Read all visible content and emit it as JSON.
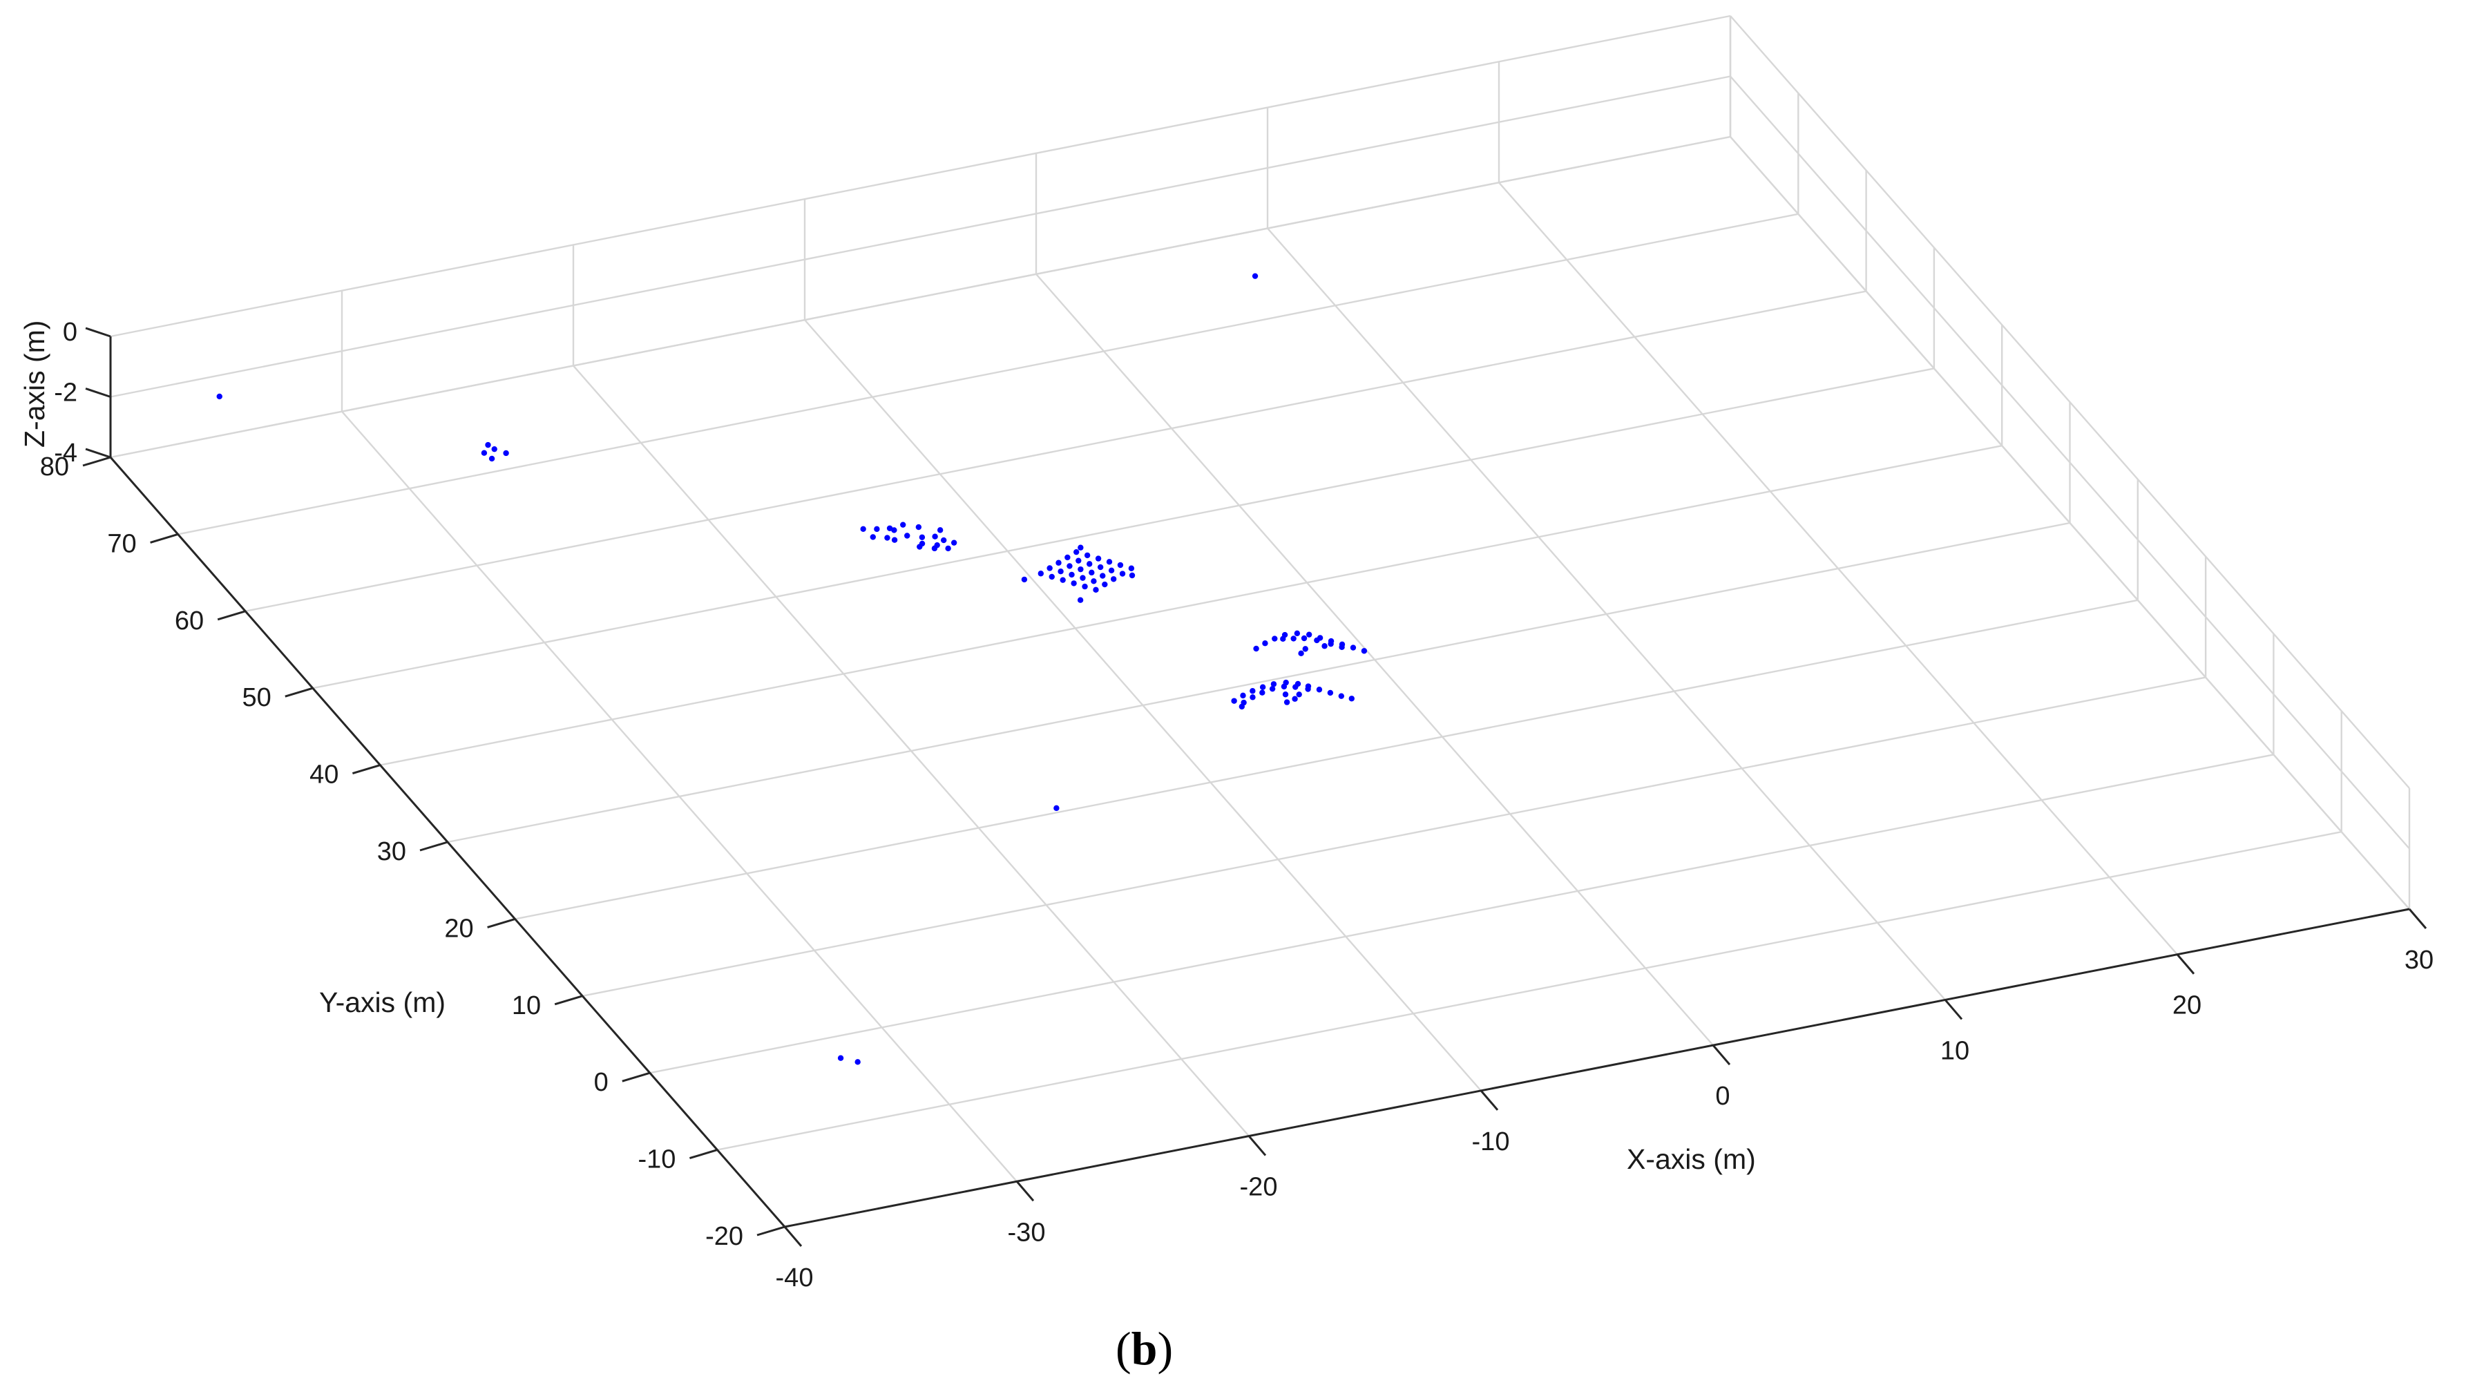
{
  "chart_data": {
    "type": "scatter",
    "dimensions": 3,
    "panel_label": {
      "open": "(",
      "letter": "b",
      "close": ")"
    },
    "xlabel": "X-axis (m)",
    "ylabel": "Y-axis (m)",
    "zlabel": "Z-axis (m)",
    "xlim": [
      -40,
      30
    ],
    "ylim": [
      -20,
      80
    ],
    "zlim": [
      -4,
      0
    ],
    "x_ticks": [
      "-40",
      "-30",
      "-20",
      "-10",
      "0",
      "10",
      "20",
      "30"
    ],
    "y_ticks": [
      "-20",
      "-10",
      "0",
      "10",
      "20",
      "30",
      "40",
      "50",
      "60",
      "70",
      "80"
    ],
    "z_ticks": [
      "-4",
      "-2",
      "0"
    ],
    "grid": true,
    "marker_color": "#0000ff",
    "axis_color": "#262626",
    "grid_color": "#d7d7d7",
    "points": [
      [
        -35,
        81,
        -3
      ],
      [
        -26,
        71.5,
        -4
      ],
      [
        -25.3,
        71.8,
        -4
      ],
      [
        -25.6,
        72.5,
        -4
      ],
      [
        -26.1,
        72.3,
        -4
      ],
      [
        -25.7,
        73.1,
        -4
      ],
      [
        -14.5,
        54.5,
        -4
      ],
      [
        -14,
        54.1,
        -4
      ],
      [
        -13.5,
        54.8,
        -4
      ],
      [
        -13,
        55.2,
        -4
      ],
      [
        -12.5,
        54.6,
        -4
      ],
      [
        -13.2,
        53.9,
        -4
      ],
      [
        -12.7,
        53.4,
        -4
      ],
      [
        -13.8,
        53.7,
        -4
      ],
      [
        -12.2,
        53.2,
        -4
      ],
      [
        -14.1,
        55.3,
        -4
      ],
      [
        -13.6,
        55.1,
        -4
      ],
      [
        -12.9,
        52.7,
        -4
      ],
      [
        -12.4,
        52.2,
        -4
      ],
      [
        -12,
        52.6,
        -4
      ],
      [
        -11.8,
        53.8,
        -4
      ],
      [
        -12.6,
        51.9,
        -4
      ],
      [
        -13.1,
        52.4,
        -4
      ],
      [
        -12.1,
        51.6,
        -4
      ],
      [
        -11.7,
        52.1,
        -4
      ],
      [
        -14.6,
        55.6,
        -4
      ],
      [
        -9.5,
        46.8,
        -4
      ],
      [
        -9,
        47.2,
        -4
      ],
      [
        -8.5,
        47.6,
        -4
      ],
      [
        -8,
        48,
        -4
      ],
      [
        -7.5,
        48.4,
        -4
      ],
      [
        -9.2,
        46.2,
        -4
      ],
      [
        -8.7,
        46.6,
        -4
      ],
      [
        -8.2,
        47,
        -4
      ],
      [
        -7.7,
        47.4,
        -4
      ],
      [
        -7.2,
        47.8,
        -4
      ],
      [
        -8.9,
        45.6,
        -4
      ],
      [
        -8.4,
        46,
        -4
      ],
      [
        -7.9,
        46.4,
        -4
      ],
      [
        -7.4,
        46.8,
        -4
      ],
      [
        -6.9,
        47.2,
        -4
      ],
      [
        -8.6,
        45,
        -4
      ],
      [
        -8.1,
        45.4,
        -4
      ],
      [
        -7.6,
        45.8,
        -4
      ],
      [
        -7.1,
        46.2,
        -4
      ],
      [
        -6.6,
        46.6,
        -4
      ],
      [
        -8.3,
        44.4,
        -4
      ],
      [
        -7.8,
        44.8,
        -4
      ],
      [
        -7.3,
        45.2,
        -4
      ],
      [
        -6.8,
        45.6,
        -4
      ],
      [
        -6.3,
        46,
        -4
      ],
      [
        -8,
        43.8,
        -4
      ],
      [
        -7.5,
        44.2,
        -4
      ],
      [
        -7,
        44.6,
        -4
      ],
      [
        -6.5,
        45,
        -4
      ],
      [
        -6,
        45.4,
        -4
      ],
      [
        -10.3,
        46.5,
        -4
      ],
      [
        -8.9,
        43,
        -4
      ],
      [
        -7.2,
        48.8,
        -4
      ],
      [
        -6.2,
        44.6,
        -4
      ],
      [
        -4,
        33.8,
        -4
      ],
      [
        -3.5,
        34.2,
        -4
      ],
      [
        -3,
        34.5,
        -4
      ],
      [
        -2.5,
        34.7,
        -4
      ],
      [
        -2,
        34.6,
        -4
      ],
      [
        -1.6,
        34.2,
        -4
      ],
      [
        -1.3,
        33.6,
        -4
      ],
      [
        -1,
        33,
        -4
      ],
      [
        -0.7,
        32.4,
        -4
      ],
      [
        -0.4,
        31.8,
        -4
      ],
      [
        -0.1,
        31.2,
        -4
      ],
      [
        -2.3,
        34.1,
        -4
      ],
      [
        -1.9,
        33.9,
        -4
      ],
      [
        -1.5,
        33.4,
        -4
      ],
      [
        -1.1,
        32.7,
        -4
      ],
      [
        -0.8,
        32.1,
        -4
      ],
      [
        -2.7,
        34.3,
        -4
      ],
      [
        -1.4,
        32.6,
        -4
      ],
      [
        -2.2,
        32.7,
        -4
      ],
      [
        -2.5,
        32.3,
        -4
      ],
      [
        -6.5,
        28.5,
        -4
      ],
      [
        -6,
        28.9,
        -4
      ],
      [
        -5.5,
        29.2,
        -4
      ],
      [
        -5,
        29.4,
        -4
      ],
      [
        -4.5,
        29.5,
        -4
      ],
      [
        -4,
        29.4,
        -4
      ],
      [
        -3.6,
        29,
        -4
      ],
      [
        -3.3,
        28.5,
        -4
      ],
      [
        -3,
        27.9,
        -4
      ],
      [
        -2.7,
        27.3,
        -4
      ],
      [
        -2.4,
        26.7,
        -4
      ],
      [
        -2.1,
        26.2,
        -4
      ],
      [
        -6.2,
        28.1,
        -4
      ],
      [
        -5.7,
        28.5,
        -4
      ],
      [
        -5.2,
        28.8,
        -4
      ],
      [
        -4.7,
        29,
        -4
      ],
      [
        -4.2,
        29,
        -4
      ],
      [
        -3.8,
        28.7,
        -4
      ],
      [
        -3.4,
        28.2,
        -4
      ],
      [
        -4.4,
        28.1,
        -4
      ],
      [
        -4.2,
        27.4,
        -4
      ],
      [
        -4.6,
        27.2,
        -4
      ],
      [
        -6.4,
        27.7,
        -4
      ],
      [
        -3.9,
        27.8,
        -4
      ],
      [
        8,
        75,
        -4
      ],
      [
        -16.5,
        20.5,
        -4
      ],
      [
        -32.5,
        -2.5,
        -4
      ],
      [
        -32,
        -3.3,
        -4
      ]
    ]
  }
}
